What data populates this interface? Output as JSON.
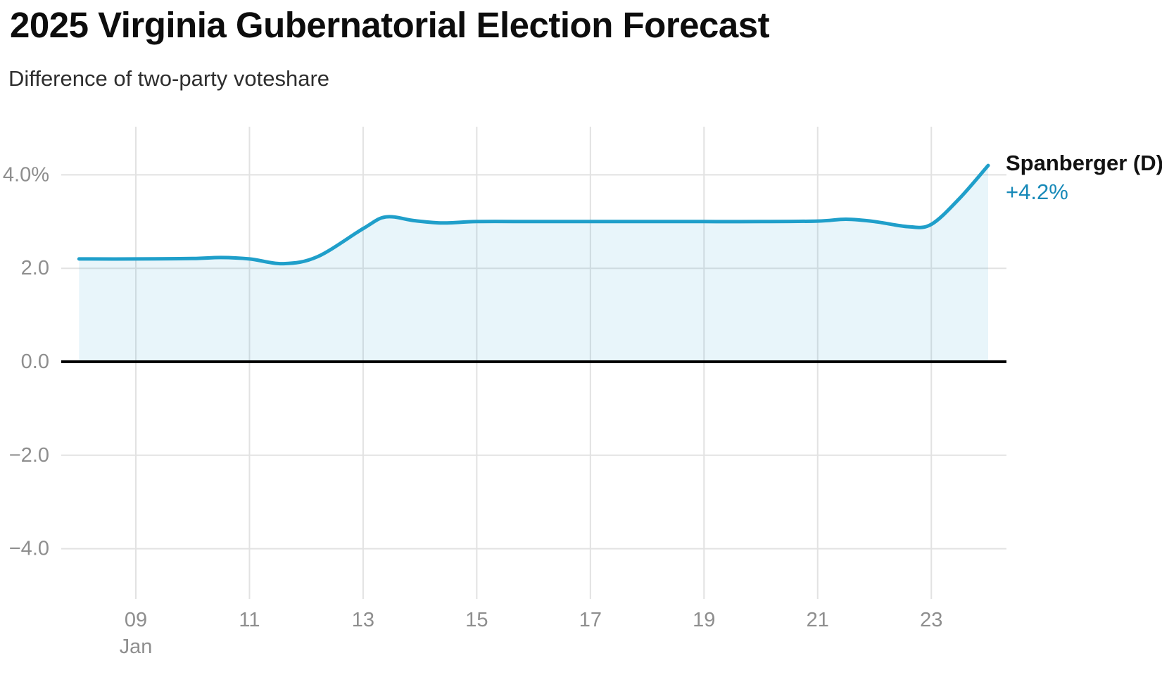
{
  "chart_data": {
    "type": "area",
    "title": "2025 Virginia Gubernatorial Election Forecast",
    "subtitle": "Difference of two-party voteshare",
    "xlabel": "",
    "ylabel": "",
    "xlim": [
      8,
      24
    ],
    "ylim": [
      -5,
      5
    ],
    "grid": true,
    "legend_position": "end-of-line",
    "x_axis": {
      "month_label": "Jan",
      "ticks": [
        {
          "v": 9,
          "label": "09"
        },
        {
          "v": 11,
          "label": "11"
        },
        {
          "v": 13,
          "label": "13"
        },
        {
          "v": 15,
          "label": "15"
        },
        {
          "v": 17,
          "label": "17"
        },
        {
          "v": 19,
          "label": "19"
        },
        {
          "v": 21,
          "label": "21"
        },
        {
          "v": 23,
          "label": "23"
        }
      ]
    },
    "y_axis": {
      "ticks": [
        {
          "v": 4,
          "label": "4.0%"
        },
        {
          "v": 2,
          "label": "2.0"
        },
        {
          "v": 0,
          "label": "0.0"
        },
        {
          "v": -2,
          "label": "−2.0"
        },
        {
          "v": -4,
          "label": "−4.0"
        }
      ]
    },
    "series": [
      {
        "name": "Spanberger (D)",
        "end_value_label": "+4.2%",
        "color": "#1f9fca",
        "fill_color": "rgba(31,159,202,0.10)",
        "value_text_color": "#1789b8",
        "points": [
          [
            8.0,
            2.2
          ],
          [
            9.0,
            2.2
          ],
          [
            10.0,
            2.21
          ],
          [
            10.5,
            2.23
          ],
          [
            11.0,
            2.2
          ],
          [
            11.6,
            2.1
          ],
          [
            12.2,
            2.25
          ],
          [
            13.0,
            2.85
          ],
          [
            13.4,
            3.1
          ],
          [
            13.9,
            3.02
          ],
          [
            14.4,
            2.97
          ],
          [
            15.0,
            3.0
          ],
          [
            16.0,
            3.0
          ],
          [
            17.0,
            3.0
          ],
          [
            18.0,
            3.0
          ],
          [
            19.0,
            3.0
          ],
          [
            20.0,
            3.0
          ],
          [
            21.0,
            3.01
          ],
          [
            21.5,
            3.05
          ],
          [
            22.0,
            3.0
          ],
          [
            22.6,
            2.89
          ],
          [
            23.0,
            2.94
          ],
          [
            23.5,
            3.5
          ],
          [
            24.0,
            4.2
          ]
        ]
      }
    ],
    "style": {
      "gridline_color": "#e2e2e2",
      "zero_line_color": "#000000",
      "axis_label_color": "#8e8e8e"
    }
  }
}
